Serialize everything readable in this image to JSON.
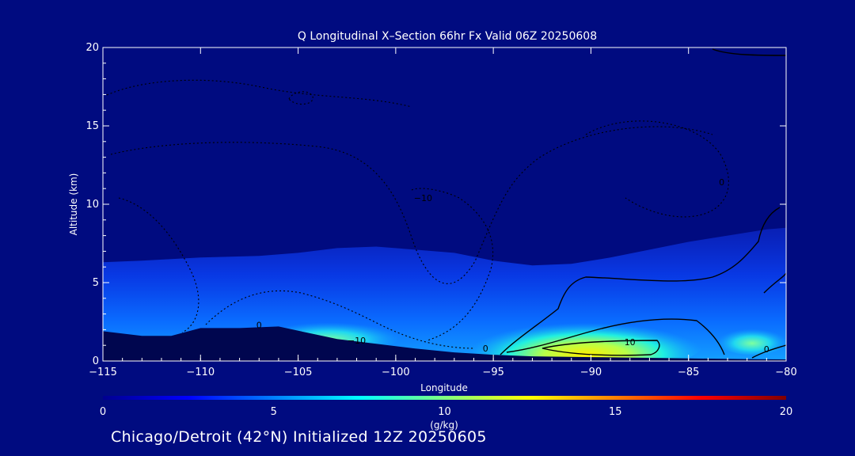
{
  "chart_data": {
    "type": "heatmap",
    "title": "Q Longitudinal X–Section 66hr  Fx Valid 06Z 20250608",
    "xlabel": "Longitude",
    "ylabel": "Altitude (km)",
    "xlim": [
      -115,
      -80
    ],
    "ylim": [
      0,
      20
    ],
    "x_ticks": [
      -115,
      -110,
      -105,
      -100,
      -95,
      -90,
      -85,
      -80
    ],
    "x_tick_labels": [
      "−115",
      "−110",
      "−105",
      "−100",
      "−95",
      "−90",
      "−85",
      "−80"
    ],
    "y_ticks": [
      0,
      5,
      10,
      15,
      20
    ],
    "y_tick_labels": [
      "0",
      "5",
      "10",
      "15",
      "20"
    ],
    "colorbar": {
      "label": "(g/kg)",
      "min": 0,
      "max": 20,
      "ticks": [
        0,
        5,
        10,
        15,
        20
      ],
      "tick_labels": [
        "0",
        "5",
        "10",
        "15",
        "20"
      ],
      "colormap": "jet"
    },
    "contour_labels": [
      {
        "text": "0",
        "x": -107.0,
        "y": 2.1
      },
      {
        "text": "−10",
        "x": -102.0,
        "y": 1.1
      },
      {
        "text": "0",
        "x": -95.4,
        "y": 0.6
      },
      {
        "text": "10",
        "x": -88.0,
        "y": 1.0
      },
      {
        "text": "−10",
        "x": -98.6,
        "y": 10.2
      },
      {
        "text": "0",
        "x": -83.3,
        "y": 11.2
      },
      {
        "text": "0",
        "x": -81.0,
        "y": 0.55
      }
    ],
    "terrain_km": {
      "x": [
        -115,
        -113,
        -111.5,
        -110,
        -108,
        -106,
        -104.5,
        -103,
        -101,
        -99,
        -97,
        -95,
        -93,
        -90,
        -87,
        -84,
        -82,
        -80
      ],
      "y": [
        1.9,
        1.6,
        1.6,
        2.1,
        2.1,
        2.2,
        1.8,
        1.4,
        1.1,
        0.8,
        0.55,
        0.4,
        0.3,
        0.25,
        0.2,
        0.15,
        0.12,
        0.1
      ]
    },
    "moist_layer_top_km": {
      "x": [
        -115,
        -113,
        -110,
        -107,
        -105,
        -103,
        -101,
        -99,
        -97,
        -95,
        -93,
        -91,
        -89,
        -87,
        -85,
        -83,
        -81,
        -80
      ],
      "y": [
        6.3,
        6.4,
        6.6,
        6.7,
        6.9,
        7.2,
        7.3,
        7.1,
        6.9,
        6.4,
        6.1,
        6.2,
        6.6,
        7.1,
        7.6,
        8.0,
        8.4,
        8.5
      ]
    }
  },
  "footer": {
    "text": "Chicago/Detroit (42°N) Initialized 12Z 20250605"
  },
  "colors": {
    "background": "#000b80",
    "axes": "#ffffff",
    "terrain": "#00064f"
  }
}
